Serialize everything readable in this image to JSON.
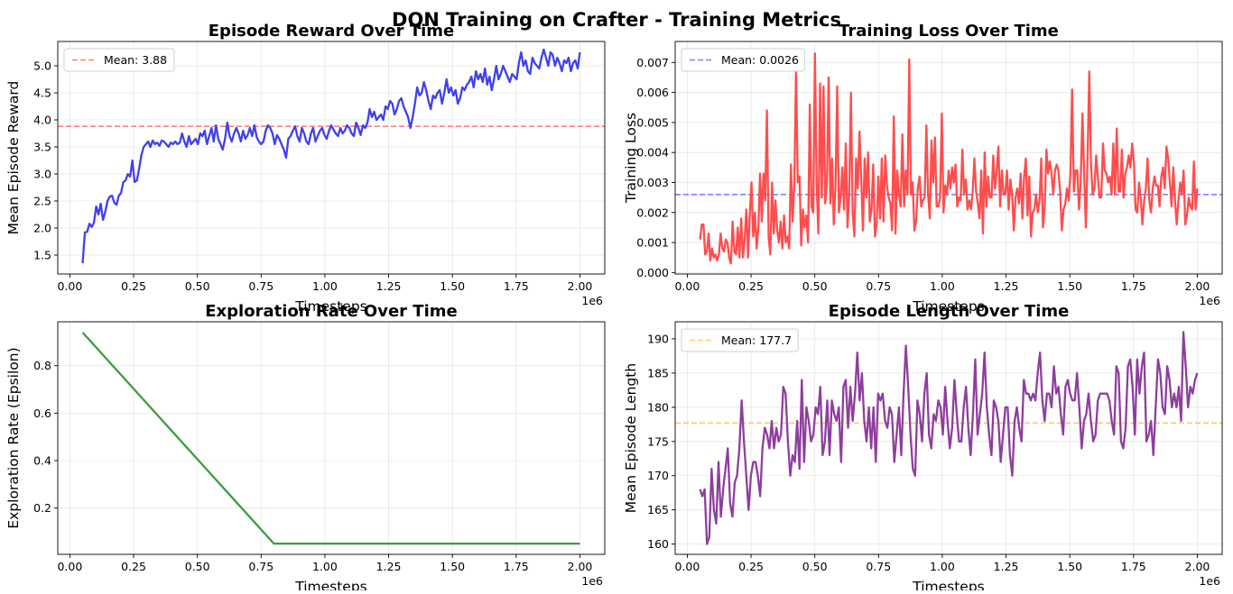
{
  "figure": {
    "suptitle": "DQN Training on Crafter - Training Metrics"
  },
  "chart_data": [
    {
      "id": "reward",
      "type": "line",
      "title": "Episode Reward Over Time",
      "xlabel": "Timesteps",
      "ylabel": "Mean Episode Reward",
      "x_offset_label": "1e6",
      "xlim": [
        -0.0475,
        2.0975
      ],
      "ylim": [
        1.15,
        5.45
      ],
      "xticks": [
        0.0,
        0.25,
        0.5,
        0.75,
        1.0,
        1.25,
        1.5,
        1.75,
        2.0
      ],
      "xtick_labels": [
        "0.00",
        "0.25",
        "0.50",
        "0.75",
        "1.00",
        "1.25",
        "1.50",
        "1.75",
        "2.00"
      ],
      "yticks": [
        1.5,
        2.0,
        2.5,
        3.0,
        3.5,
        4.0,
        4.5,
        5.0
      ],
      "ytick_labels": [
        "1.5",
        "2.0",
        "2.5",
        "3.0",
        "3.5",
        "4.0",
        "4.5",
        "5.0"
      ],
      "grid": true,
      "legend_position": "upper-left",
      "series": [
        {
          "color": "#4040ee",
          "x_start": 0.05,
          "x_end": 2.0,
          "values": [
            1.35,
            1.92,
            1.93,
            2.08,
            2.02,
            2.1,
            2.4,
            2.25,
            2.45,
            2.15,
            2.3,
            2.5,
            2.58,
            2.6,
            2.47,
            2.43,
            2.6,
            2.65,
            2.85,
            2.88,
            3.0,
            2.95,
            3.25,
            2.85,
            2.88,
            3.1,
            3.35,
            3.5,
            3.55,
            3.6,
            3.5,
            3.62,
            3.55,
            3.58,
            3.52,
            3.62,
            3.6,
            3.55,
            3.5,
            3.58,
            3.55,
            3.6,
            3.55,
            3.58,
            3.75,
            3.6,
            3.5,
            3.7,
            3.55,
            3.6,
            3.65,
            3.55,
            3.75,
            3.7,
            3.8,
            3.55,
            3.7,
            3.85,
            3.6,
            3.9,
            3.65,
            3.55,
            3.45,
            3.65,
            3.95,
            3.7,
            3.6,
            3.75,
            3.85,
            3.75,
            3.6,
            3.8,
            3.65,
            3.72,
            3.85,
            3.7,
            3.9,
            3.68,
            3.6,
            3.55,
            3.6,
            3.8,
            3.9,
            3.85,
            3.75,
            3.55,
            3.72,
            3.65,
            3.55,
            3.45,
            3.3,
            3.65,
            3.7,
            3.8,
            3.88,
            3.7,
            3.6,
            3.85,
            3.75,
            3.6,
            3.55,
            3.75,
            3.85,
            3.6,
            3.7,
            3.8,
            3.85,
            3.72,
            3.65,
            3.8,
            3.9,
            3.82,
            3.75,
            3.7,
            3.85,
            3.75,
            3.8,
            3.9,
            3.85,
            3.75,
            3.7,
            3.95,
            3.85,
            3.72,
            3.9,
            3.85,
            3.95,
            4.2,
            4.05,
            4.15,
            4.0,
            4.05,
            4.1,
            4.0,
            4.25,
            4.2,
            4.35,
            4.3,
            4.1,
            4.2,
            4.35,
            4.4,
            4.25,
            4.15,
            4.05,
            3.85,
            4.05,
            4.3,
            4.6,
            4.45,
            4.5,
            4.7,
            4.55,
            4.35,
            4.2,
            4.45,
            4.4,
            4.5,
            4.55,
            4.3,
            4.5,
            4.75,
            4.5,
            4.6,
            4.45,
            4.55,
            4.3,
            4.4,
            4.6,
            4.55,
            4.65,
            4.7,
            4.8,
            4.6,
            4.9,
            4.75,
            4.85,
            4.7,
            4.95,
            4.65,
            4.8,
            4.55,
            4.75,
            5.0,
            4.75,
            4.85,
            5.0,
            4.9,
            4.8,
            4.7,
            4.85,
            4.8,
            4.75,
            5.05,
            5.25,
            5.0,
            5.1,
            4.9,
            4.85,
            5.15,
            5.05,
            5.0,
            4.95,
            5.15,
            5.3,
            5.15,
            5.0,
            5.25,
            5.2,
            5.0,
            5.15,
            5.05,
            4.9,
            5.1,
            5.05,
            5.15,
            4.9,
            5.05,
            5.1,
            4.95,
            5.25
          ]
        }
      ],
      "reference_line": {
        "y": 3.88,
        "label": "Mean: 3.88",
        "color": "#ff7f7f"
      }
    },
    {
      "id": "loss",
      "type": "line",
      "title": "Training Loss Over Time",
      "xlabel": "Timesteps",
      "ylabel": "Training Loss",
      "x_offset_label": "1e6",
      "xlim": [
        -0.0475,
        2.0975
      ],
      "ylim": [
        -5e-05,
        0.0077
      ],
      "xticks": [
        0.0,
        0.25,
        0.5,
        0.75,
        1.0,
        1.25,
        1.5,
        1.75,
        2.0
      ],
      "xtick_labels": [
        "0.00",
        "0.25",
        "0.50",
        "0.75",
        "1.00",
        "1.25",
        "1.50",
        "1.75",
        "2.00"
      ],
      "yticks": [
        0.0,
        0.001,
        0.002,
        0.003,
        0.004,
        0.005,
        0.006,
        0.007
      ],
      "ytick_labels": [
        "0.000",
        "0.001",
        "0.002",
        "0.003",
        "0.004",
        "0.005",
        "0.006",
        "0.007"
      ],
      "grid": true,
      "legend_position": "upper-left",
      "series": [
        {
          "color": "#ff4d4d",
          "x_start": 0.05,
          "x_end": 2.0,
          "values": [
            0.0011,
            0.0016,
            0.0016,
            0.0006,
            0.0007,
            0.0013,
            0.0004,
            0.0008,
            0.0005,
            0.0006,
            0.0004,
            0.0006,
            0.0013,
            0.0008,
            0.0007,
            0.0011,
            0.001,
            0.0005,
            0.0003,
            0.0017,
            0.0007,
            0.0006,
            0.0015,
            0.0005,
            0.0018,
            0.0005,
            0.0011,
            0.0021,
            0.0005,
            0.0019,
            0.003,
            0.0012,
            0.002,
            0.0008,
            0.0015,
            0.0033,
            0.0017,
            0.0033,
            0.0024,
            0.0054,
            0.0012,
            0.0006,
            0.003,
            0.0013,
            0.0024,
            0.0014,
            0.001,
            0.0017,
            0.0008,
            0.0019,
            0.001,
            0.0012,
            0.0008,
            0.0036,
            0.0017,
            0.003,
            0.0068,
            0.003,
            0.0032,
            0.0009,
            0.0021,
            0.0015,
            0.0019,
            0.001,
            0.0056,
            0.0022,
            0.002,
            0.0073,
            0.003,
            0.0013,
            0.0063,
            0.0025,
            0.0062,
            0.0023,
            0.003,
            0.0065,
            0.0023,
            0.0038,
            0.0016,
            0.0029,
            0.0062,
            0.002,
            0.0025,
            0.0035,
            0.0021,
            0.0043,
            0.0015,
            0.0026,
            0.006,
            0.002,
            0.0012,
            0.0038,
            0.0028,
            0.0047,
            0.0031,
            0.0014,
            0.0038,
            0.0025,
            0.004,
            0.0017,
            0.0021,
            0.0036,
            0.0012,
            0.0016,
            0.0032,
            0.0018,
            0.0038,
            0.0017,
            0.0039,
            0.0029,
            0.0025,
            0.0023,
            0.0014,
            0.0052,
            0.0013,
            0.0034,
            0.0026,
            0.0022,
            0.0046,
            0.0022,
            0.0034,
            0.0026,
            0.0071,
            0.0026,
            0.003,
            0.0014,
            0.0017,
            0.0028,
            0.0032,
            0.0022,
            0.0024,
            0.0025,
            0.0049,
            0.0026,
            0.0018,
            0.0044,
            0.003,
            0.0045,
            0.0022,
            0.0022,
            0.0025,
            0.0053,
            0.002,
            0.0029,
            0.0026,
            0.0034,
            0.0028,
            0.0035,
            0.003,
            0.0036,
            0.0022,
            0.0025,
            0.0024,
            0.0041,
            0.0026,
            0.0031,
            0.0021,
            0.0024,
            0.0021,
            0.0027,
            0.0038,
            0.0027,
            0.0023,
            0.0018,
            0.0034,
            0.0013,
            0.004,
            0.0022,
            0.0032,
            0.0025,
            0.0025,
            0.0039,
            0.0028,
            0.0034,
            0.0042,
            0.0022,
            0.0034,
            0.0026,
            0.0026,
            0.0034,
            0.0021,
            0.0031,
            0.0026,
            0.0014,
            0.0025,
            0.0028,
            0.0023,
            0.0033,
            0.0018,
            0.0032,
            0.0038,
            0.0019,
            0.0032,
            0.0012,
            0.002,
            0.0021,
            0.0026,
            0.002,
            0.0024,
            0.0038,
            0.0015,
            0.0022,
            0.0041,
            0.0033,
            0.0037,
            0.0033,
            0.0026,
            0.0034,
            0.0036,
            0.0034,
            0.0027,
            0.0014,
            0.0021,
            0.0023,
            0.0028,
            0.0024,
            0.0033,
            0.0061,
            0.0027,
            0.0034,
            0.0034,
            0.0021,
            0.003,
            0.0053,
            0.0033,
            0.0015,
            0.0038,
            0.0067,
            0.0036,
            0.0026,
            0.0028,
            0.0039,
            0.0032,
            0.0025,
            0.0025,
            0.0043,
            0.0034,
            0.0033,
            0.003,
            0.0032,
            0.0026,
            0.0043,
            0.0026,
            0.0048,
            0.0027,
            0.0027,
            0.0041,
            0.0025,
            0.0033,
            0.0035,
            0.0039,
            0.0035,
            0.0043,
            0.0037,
            0.0021,
            0.002,
            0.003,
            0.0025,
            0.0016,
            0.0024,
            0.0028,
            0.0038,
            0.0024,
            0.002,
            0.0028,
            0.0032,
            0.0029,
            0.0029,
            0.0022,
            0.0032,
            0.0035,
            0.0028,
            0.0042,
            0.0038,
            0.003,
            0.0022,
            0.0035,
            0.0024,
            0.0016,
            0.0024,
            0.003,
            0.0026,
            0.0034,
            0.0016,
            0.0019,
            0.0025,
            0.0022,
            0.0021,
            0.0037,
            0.0021,
            0.0028
          ]
        }
      ],
      "reference_line": {
        "y": 0.0026,
        "label": "Mean: 0.0026",
        "color": "#7f7fff"
      }
    },
    {
      "id": "epsilon",
      "type": "line",
      "title": "Exploration Rate Over Time",
      "xlabel": "Timesteps",
      "ylabel": "Exploration Rate (Epsilon)",
      "x_offset_label": "1e6",
      "xlim": [
        -0.0475,
        2.0975
      ],
      "ylim": [
        0.005,
        0.985
      ],
      "xticks": [
        0.0,
        0.25,
        0.5,
        0.75,
        1.0,
        1.25,
        1.5,
        1.75,
        2.0
      ],
      "xtick_labels": [
        "0.00",
        "0.25",
        "0.50",
        "0.75",
        "1.00",
        "1.25",
        "1.50",
        "1.75",
        "2.00"
      ],
      "yticks": [
        0.2,
        0.4,
        0.6,
        0.8
      ],
      "ytick_labels": [
        "0.2",
        "0.4",
        "0.6",
        "0.8"
      ],
      "grid": true,
      "series": [
        {
          "color": "#3a9e3a",
          "x": [
            0.05,
            0.8,
            2.0
          ],
          "y": [
            0.94,
            0.05,
            0.05
          ]
        }
      ]
    },
    {
      "id": "length",
      "type": "line",
      "title": "Episode Length Over Time",
      "xlabel": "Timesteps",
      "ylabel": "Mean Episode Length",
      "x_offset_label": "1e6",
      "xlim": [
        -0.0475,
        2.0975
      ],
      "ylim": [
        158.5,
        192.5
      ],
      "xticks": [
        0.0,
        0.25,
        0.5,
        0.75,
        1.0,
        1.25,
        1.5,
        1.75,
        2.0
      ],
      "xtick_labels": [
        "0.00",
        "0.25",
        "0.50",
        "0.75",
        "1.00",
        "1.25",
        "1.50",
        "1.75",
        "2.00"
      ],
      "yticks": [
        160,
        165,
        170,
        175,
        180,
        185,
        190
      ],
      "ytick_labels": [
        "160",
        "165",
        "170",
        "175",
        "180",
        "185",
        "190"
      ],
      "grid": true,
      "legend_position": "upper-left",
      "series": [
        {
          "color": "#8e3e9e",
          "x_start": 0.05,
          "x_end": 2.0,
          "values": [
            168,
            167,
            168,
            160,
            161,
            171,
            165,
            163,
            172,
            164,
            168,
            171,
            174,
            166,
            164,
            169,
            170,
            174,
            181,
            175,
            170,
            165,
            170,
            172,
            172,
            170,
            167,
            174,
            177,
            176,
            174,
            178,
            174,
            177,
            175,
            176,
            183,
            182,
            175,
            170,
            173,
            172,
            178,
            171,
            184,
            172,
            180,
            178,
            175,
            176,
            180,
            179,
            183,
            173,
            175,
            181,
            173,
            181,
            179,
            178,
            180,
            172,
            183,
            184,
            177,
            183,
            178,
            182,
            188,
            181,
            185,
            178,
            175,
            180,
            174,
            180,
            172,
            182,
            181,
            182,
            178,
            177,
            180,
            179,
            172,
            176,
            180,
            173,
            182,
            189,
            183,
            176,
            171,
            170,
            181,
            179,
            175,
            182,
            185,
            176,
            174,
            179,
            178,
            181,
            180,
            176,
            183,
            178,
            174,
            177,
            184,
            179,
            175,
            175,
            180,
            183,
            177,
            173,
            179,
            187,
            176,
            179,
            182,
            188,
            180,
            176,
            173,
            181,
            180,
            178,
            172,
            176,
            180,
            180,
            173,
            170,
            178,
            180,
            177,
            175,
            184,
            182,
            182,
            181,
            182,
            181,
            185,
            188,
            181,
            178,
            182,
            182,
            180,
            186,
            182,
            183,
            179,
            176,
            183,
            184,
            182,
            181,
            181,
            185,
            180,
            174,
            178,
            179,
            182,
            178,
            175,
            176,
            181,
            182,
            182,
            182,
            182,
            181,
            178,
            176,
            186,
            185,
            175,
            174,
            177,
            186,
            187,
            183,
            176,
            187,
            182,
            186,
            188,
            175,
            176,
            178,
            173,
            180,
            187,
            185,
            180,
            179,
            186,
            184,
            180,
            182,
            180,
            183,
            178,
            191,
            186,
            180,
            183,
            182,
            184,
            185
          ]
        }
      ],
      "reference_line": {
        "y": 177.7,
        "label": "Mean: 177.7",
        "color": "#ffc966"
      }
    }
  ]
}
